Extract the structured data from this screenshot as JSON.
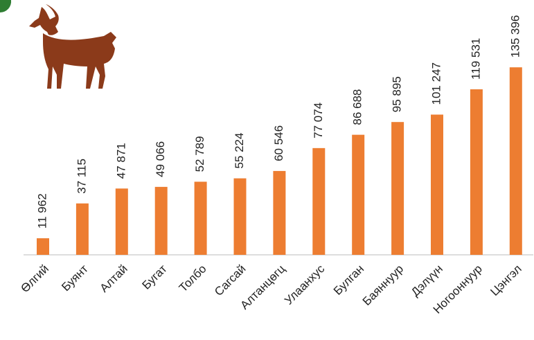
{
  "chart_data": {
    "type": "bar",
    "categories": [
      "Өлгий",
      "Буянт",
      "Алтай",
      "Бугат",
      "Толбо",
      "Сагсай",
      "Алтанцөгц",
      "Улаанхус",
      "Булган",
      "Баяннуур",
      "Дэлүүн",
      "Ногооннуур",
      "Цэнгэл"
    ],
    "values": [
      11962,
      37115,
      47871,
      49066,
      52789,
      55224,
      60546,
      77074,
      86688,
      95895,
      101247,
      119531,
      135396
    ],
    "value_labels": [
      "11 962",
      "37 115",
      "47 871",
      "49 066",
      "52 789",
      "55 224",
      "60 546",
      "77 074",
      "86 688",
      "95 895",
      "101 247",
      "119 531",
      "135 396"
    ],
    "color": "#ed7d31",
    "ylim": [
      0,
      140000
    ]
  }
}
